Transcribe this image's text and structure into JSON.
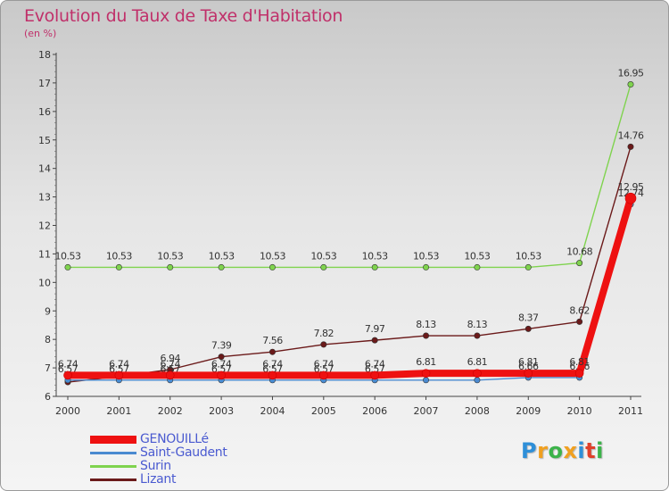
{
  "title": "Evolution du Taux de Taxe d'Habitation",
  "subtitle": "(en %)",
  "logo": {
    "text": "Proxiti",
    "letters": [
      {
        "ch": "P",
        "color": "#2e8fd8"
      },
      {
        "ch": "r",
        "color": "#f0a020"
      },
      {
        "ch": "o",
        "color": "#3cb34a"
      },
      {
        "ch": "x",
        "color": "#f0a020"
      },
      {
        "ch": "i",
        "color": "#2e8fd8"
      },
      {
        "ch": "t",
        "color": "#e0402a"
      },
      {
        "ch": "i",
        "color": "#3cb34a"
      }
    ]
  },
  "chart_data": {
    "type": "line",
    "title": "Evolution du Taux de Taxe d'Habitation",
    "ylabel": "(en %)",
    "xlabel": "",
    "ylim": [
      6,
      18
    ],
    "yticks": [
      6,
      7,
      8,
      9,
      10,
      11,
      12,
      13,
      14,
      15,
      16,
      17,
      18
    ],
    "categories": [
      "2000",
      "2001",
      "2002",
      "2003",
      "2004",
      "2005",
      "2006",
      "2007",
      "2008",
      "2009",
      "2010",
      "2011"
    ],
    "grid": false,
    "legend_position": "bottom-left",
    "series": [
      {
        "name": "Lizant",
        "color": "#6b1a1a",
        "values": [
          6.5,
          6.7,
          6.94,
          7.39,
          7.56,
          7.82,
          7.97,
          8.13,
          8.13,
          8.37,
          8.62,
          14.76
        ],
        "labels": [
          "",
          "",
          "6.94",
          "7.39",
          "7.56",
          "7.82",
          "7.97",
          "8.13",
          "8.13",
          "8.37",
          "8.62",
          "14.76"
        ]
      },
      {
        "name": "Surin",
        "color": "#7fd34e",
        "values": [
          10.53,
          10.53,
          10.53,
          10.53,
          10.53,
          10.53,
          10.53,
          10.53,
          10.53,
          10.53,
          10.68,
          16.95
        ],
        "labels": [
          "10.53",
          "10.53",
          "10.53",
          "10.53",
          "10.53",
          "10.53",
          "10.53",
          "10.53",
          "10.53",
          "10.53",
          "10.68",
          "16.95"
        ]
      },
      {
        "name": "Saint-Gaudent",
        "color": "#4a8ad0",
        "values": [
          6.57,
          6.57,
          6.57,
          6.57,
          6.57,
          6.57,
          6.57,
          6.57,
          6.57,
          6.66,
          6.66,
          12.74
        ],
        "labels": [
          "6.57",
          "6.57",
          "6.57",
          "6.57",
          "6.57",
          "6.57",
          "6.57",
          "",
          "",
          "6.66",
          "6.66",
          "12.74"
        ]
      },
      {
        "name": "GENOUILLé",
        "color": "#ee1111",
        "values": [
          6.74,
          6.74,
          6.74,
          6.74,
          6.74,
          6.74,
          6.74,
          6.81,
          6.81,
          6.81,
          6.81,
          12.95
        ],
        "labels": [
          "6.74",
          "6.74",
          "6.74",
          "6.74",
          "6.74",
          "6.74",
          "6.74",
          "6.81",
          "6.81",
          "6.81",
          "6.81",
          "12.95"
        ]
      }
    ]
  },
  "legend": [
    {
      "label": "GENOUILLé",
      "color": "#ee1111",
      "thick": true
    },
    {
      "label": "Saint-Gaudent",
      "color": "#4a8ad0",
      "thick": false
    },
    {
      "label": "Surin",
      "color": "#7fd34e",
      "thick": false
    },
    {
      "label": "Lizant",
      "color": "#6b1a1a",
      "thick": false
    }
  ]
}
